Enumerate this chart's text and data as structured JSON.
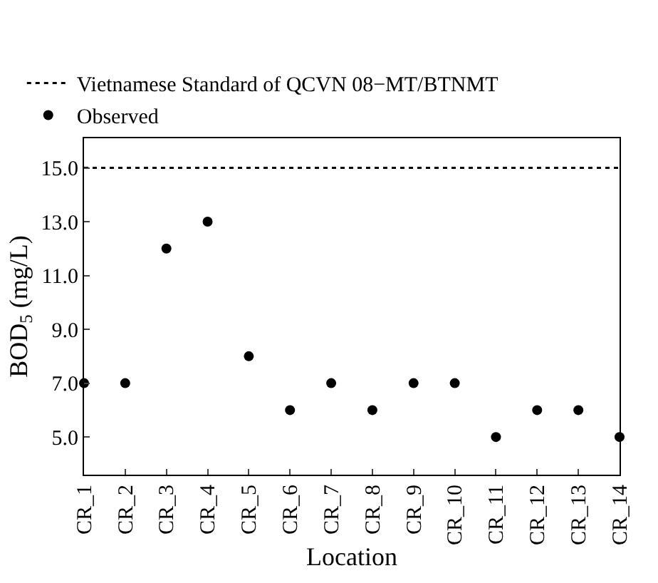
{
  "chart_data": {
    "type": "scatter",
    "xlabel": "Location",
    "ylabel": "BOD$_{5}$ (mg/L)",
    "categories": [
      "CR_1",
      "CR_2",
      "CR_3",
      "CR_4",
      "CR_5",
      "CR_6",
      "CR_7",
      "CR_8",
      "CR_9",
      "CR_10",
      "CR_11",
      "CR_12",
      "CR_13",
      "CR_14"
    ],
    "series": [
      {
        "name": "Observed",
        "color": "#000000",
        "values": [
          7,
          7,
          12,
          13,
          8,
          6,
          7,
          6,
          7,
          7,
          5,
          6,
          6,
          5
        ]
      }
    ],
    "ref_lines": [
      {
        "axis": "y",
        "value": 15,
        "label": "Vietnamese Standard of QCVN 08−MT/BTNMT",
        "color": "#000000",
        "line_style": "dotted"
      }
    ],
    "ylim": [
      3.6,
      16.1
    ],
    "yticks": [
      {
        "value": 5,
        "label": "5.0"
      },
      {
        "value": 7,
        "label": "7.0"
      },
      {
        "value": 9,
        "label": "9.0"
      },
      {
        "value": 11,
        "label": "11.0"
      },
      {
        "value": 13,
        "label": "13.0"
      },
      {
        "value": 15,
        "label": "15.0"
      }
    ],
    "marker": "circle",
    "legend": "top"
  }
}
